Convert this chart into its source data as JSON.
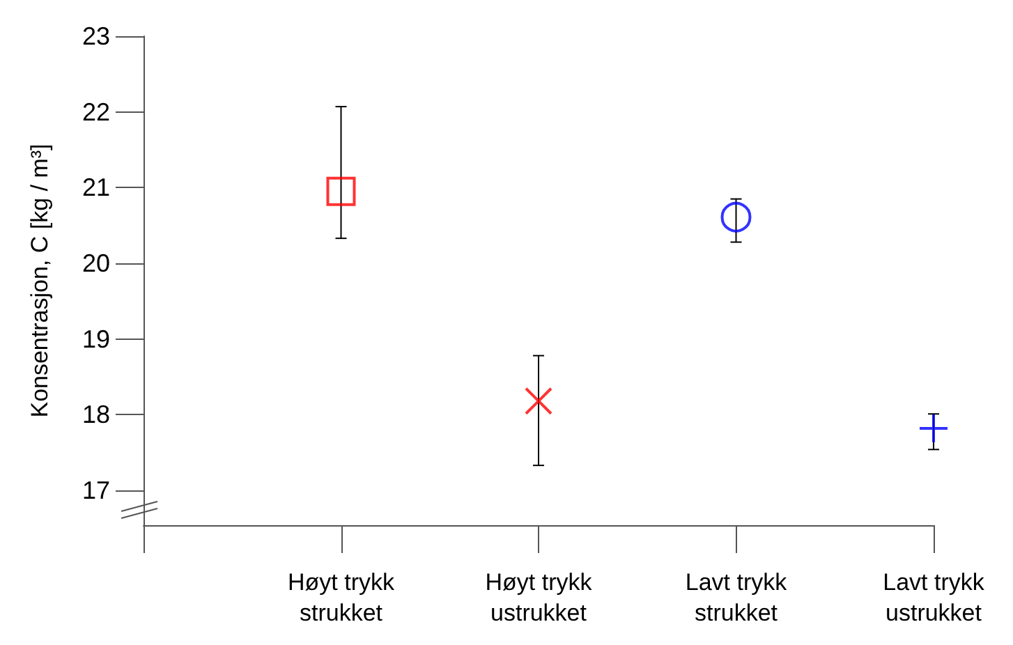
{
  "chart_data": {
    "type": "scatter",
    "ylabel": "Konsentrasjon, C [kg / m³]",
    "categories": [
      null,
      "Høyt trykk\nstrukket",
      "Høyt trykk\nustrukket",
      "Lavt trykk\nstrukket",
      "Lavt trykk\nustrukket"
    ],
    "ylim": [
      16.54,
      23
    ],
    "yticks": [
      17,
      18,
      19,
      20,
      21,
      22,
      23
    ],
    "grid": false,
    "series": [
      {
        "color": "#ff0000",
        "marker": "square",
        "values": [
          null,
          20.95,
          null,
          null,
          null
        ],
        "errors": [
          null,
          [
            20.33,
            22.07
          ],
          null,
          null,
          null
        ]
      },
      {
        "color": "#ff0000",
        "marker": "cross",
        "values": [
          null,
          null,
          18.18,
          null,
          null
        ],
        "errors": [
          null,
          null,
          [
            17.33,
            18.78
          ],
          null,
          null
        ]
      },
      {
        "color": "#0000ff",
        "marker": "circle",
        "values": [
          null,
          null,
          null,
          20.61,
          null
        ],
        "errors": [
          null,
          null,
          null,
          [
            20.28,
            20.85
          ],
          null
        ]
      },
      {
        "color": "#0000ff",
        "marker": "plus",
        "values": [
          null,
          null,
          null,
          null,
          17.82
        ],
        "errors": [
          null,
          null,
          null,
          null,
          [
            17.54,
            18.01
          ]
        ]
      }
    ]
  }
}
